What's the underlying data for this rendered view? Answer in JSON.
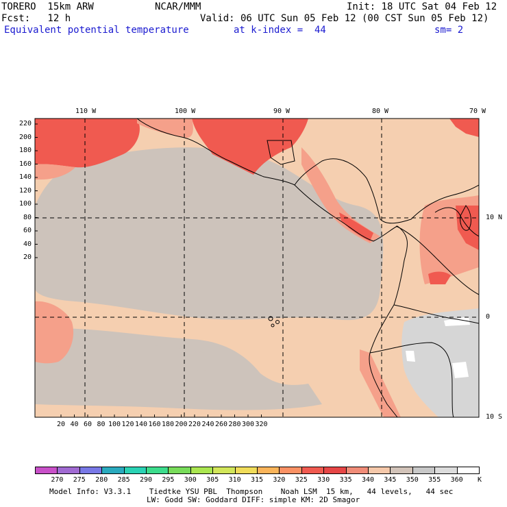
{
  "header": {
    "model": "TORERO  15km ARW",
    "center": "NCAR/MMM",
    "init": "Init: 18 UTC Sat 04 Feb 12",
    "fcst": "Fcst:   12 h",
    "valid": "Valid: 06 UTC Sun 05 Feb 12 (00 CST Sun 05 Feb 12)",
    "field": "Equivalent potential temperature",
    "level": "at k-index =  44",
    "smooth": "sm= 2"
  },
  "axes": {
    "top_longitudes": [
      "110 W",
      "100 W",
      "90 W",
      "80 W",
      "70 W"
    ],
    "right_latitudes": [
      "10 N",
      "0",
      "10 S"
    ],
    "left_ticks": [
      "220",
      "200",
      "180",
      "160",
      "140",
      "120",
      "100",
      "80",
      "60",
      "40",
      "20"
    ],
    "bottom_ticks": [
      "20",
      "40",
      "60",
      "80",
      "100",
      "120",
      "140",
      "160",
      "180",
      "200",
      "220",
      "240",
      "260",
      "280",
      "300",
      "320"
    ]
  },
  "colorbar": {
    "unit": "K",
    "labels": [
      "270",
      "275",
      "280",
      "285",
      "290",
      "295",
      "300",
      "305",
      "310",
      "315",
      "320",
      "325",
      "330",
      "335",
      "340",
      "345",
      "350",
      "355",
      "360"
    ],
    "colors": [
      "#c850c8",
      "#a06ad2",
      "#7878e6",
      "#2aaabe",
      "#2ad2b4",
      "#3cdc8c",
      "#78dc5a",
      "#aae650",
      "#d2e65a",
      "#f0dc5a",
      "#fab45a",
      "#fa9164",
      "#f05a50",
      "#e64646",
      "#f08c78",
      "#f5c8aa",
      "#d2c3b9",
      "#c8c8c8",
      "#dcdcdc",
      "#ffffff"
    ]
  },
  "footer": {
    "line1": "Model Info: V3.3.1    Tiedtke YSU PBL  Thompson    Noah LSM  15 km,   44 levels,   44 sec",
    "line2": "LW: Godd SW: Goddard DIFF: simple KM: 2D Smagor"
  },
  "map_colors": {
    "background": "#f5cfb0",
    "grey": "#cdc3bb",
    "light_grey": "#d6d6d6",
    "red": "#f05a50",
    "salmon": "#f5a08a",
    "white": "#ffffff"
  }
}
